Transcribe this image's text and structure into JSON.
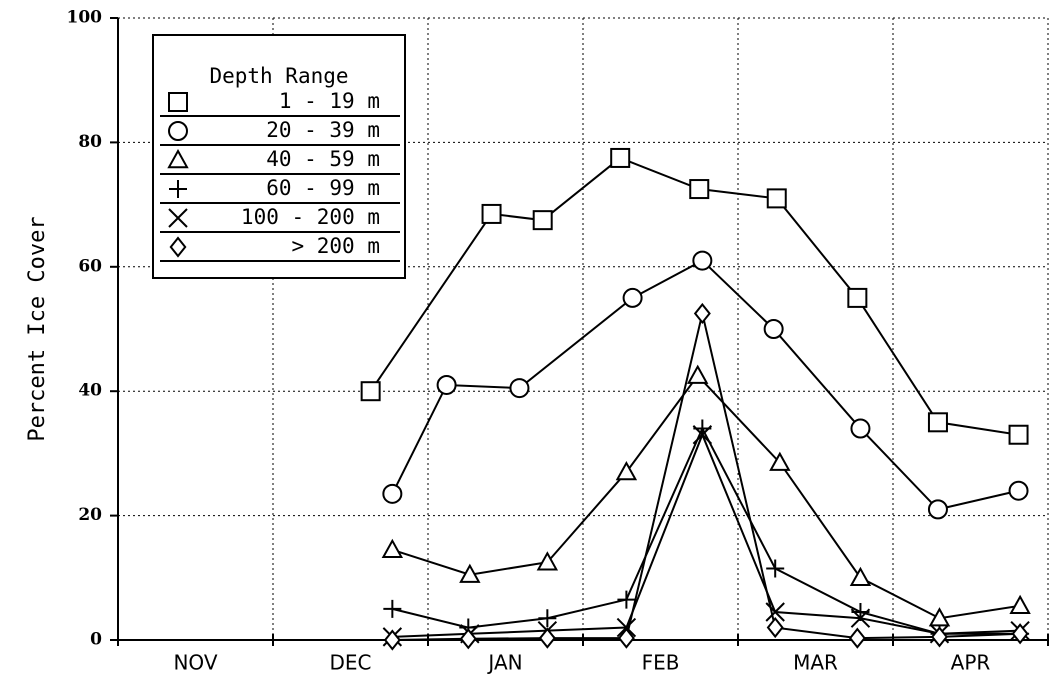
{
  "chart_data": {
    "type": "line",
    "y_label": "Percent Ice Cover",
    "legend_title": "Depth Range",
    "categories": [
      "NOV",
      "DEC",
      "JAN",
      "FEB",
      "MAR",
      "APR"
    ],
    "xlim": [
      0,
      6
    ],
    "xticks": [
      0,
      1,
      2,
      3,
      4,
      5,
      6
    ],
    "ylim": [
      0,
      100
    ],
    "yticks": [
      0,
      20,
      40,
      60,
      80,
      100
    ],
    "grid": true,
    "legend": "upper left",
    "series": [
      {
        "name": "1 - 19 m",
        "marker": "square",
        "color": "#000000",
        "x": [
          1.63,
          2.41,
          2.74,
          3.24,
          3.75,
          4.25,
          4.77,
          5.29,
          5.81
        ],
        "values": [
          40,
          68.5,
          67.5,
          77.5,
          72.5,
          71,
          55,
          35,
          33
        ]
      },
      {
        "name": "20 - 39 m",
        "marker": "circle",
        "color": "#000000",
        "x": [
          1.77,
          2.12,
          2.59,
          3.32,
          3.77,
          4.23,
          4.79,
          5.29,
          5.81
        ],
        "values": [
          23.5,
          41,
          40.5,
          55,
          61,
          50,
          34,
          21,
          24
        ]
      },
      {
        "name": "40 - 59 m",
        "marker": "triangle",
        "color": "#000000",
        "x": [
          1.77,
          2.27,
          2.77,
          3.28,
          3.74,
          4.27,
          4.79,
          5.3,
          5.82
        ],
        "values": [
          14.5,
          10.5,
          12.5,
          27,
          42.5,
          28.5,
          10,
          3.5,
          5.5
        ]
      },
      {
        "name": "60 - 99 m",
        "marker": "plus",
        "color": "#000000",
        "x": [
          1.77,
          2.26,
          2.77,
          3.28,
          3.77,
          4.24,
          4.79,
          5.3,
          5.82
        ],
        "values": [
          5,
          2,
          3.5,
          6.5,
          34,
          11.5,
          4.5,
          1,
          1
        ]
      },
      {
        "name": "100 - 200 m",
        "marker": "cross",
        "color": "#000000",
        "x": [
          1.77,
          2.27,
          2.77,
          3.28,
          3.77,
          4.24,
          4.79,
          5.3,
          5.82
        ],
        "values": [
          0.5,
          1,
          1.5,
          2,
          33,
          4.5,
          3.5,
          1,
          1.5
        ]
      },
      {
        "name": "> 200 m",
        "marker": "diamond",
        "color": "#000000",
        "x": [
          1.77,
          2.26,
          2.77,
          3.28,
          3.77,
          4.24,
          4.77,
          5.3,
          5.82
        ],
        "values": [
          0,
          0.2,
          0.3,
          0.3,
          52.5,
          2,
          0.3,
          0.5,
          1
        ]
      }
    ]
  }
}
